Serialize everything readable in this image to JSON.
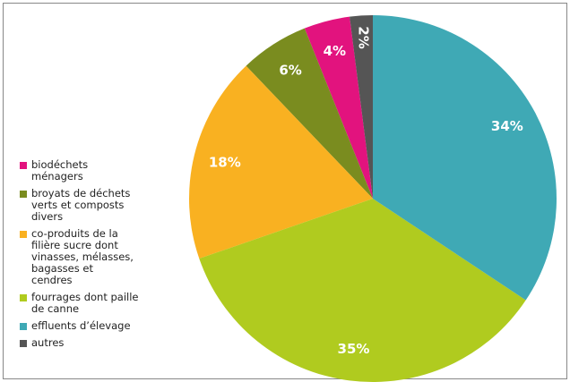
{
  "chart_data": {
    "type": "pie",
    "series": [
      {
        "name": "biodéchets ménagers",
        "color": "#e2137e",
        "values": [
          4
        ],
        "value_labels": [
          "4%"
        ]
      },
      {
        "name": "broyats de déchets verts et composts divers",
        "color": "#7a8c1f",
        "values": [
          6
        ],
        "value_labels": [
          "6%"
        ]
      },
      {
        "name": "co-produits de la filière sucre dont vinasses, mélasses, bagasses et cendres",
        "color": "#f9b121",
        "values": [
          18
        ],
        "value_labels": [
          "18%"
        ]
      },
      {
        "name": "fourrages dont paille de canne",
        "color": "#b0cb1f",
        "values": [
          35
        ],
        "value_labels": [
          "35%"
        ]
      },
      {
        "name": "effluents d’élevage",
        "color": "#3fa9b5",
        "values": [
          34
        ],
        "value_labels": [
          "34%"
        ]
      },
      {
        "name": "autres",
        "color": "#555555",
        "values": [
          2
        ],
        "value_labels": [
          "2%"
        ]
      }
    ]
  }
}
